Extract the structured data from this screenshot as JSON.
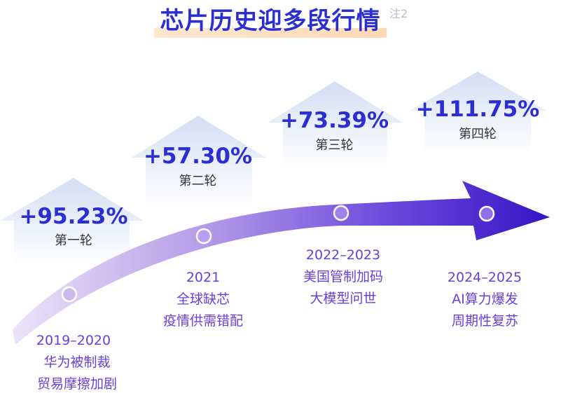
{
  "title": "芯片历史迎多段行情",
  "note": "注2",
  "colors": {
    "title": "#2b2fd1",
    "percent": "#2b2fd1",
    "label": "#6a3fd8",
    "arrow_start": "#e6dcf7",
    "arrow_end": "#3a19c9",
    "house": "#dde7f6"
  },
  "rounds": [
    {
      "percent": "+95.23%",
      "round": "第一轮",
      "period": "2019–2020",
      "lines": [
        "华为被制裁",
        "贸易摩擦加剧"
      ]
    },
    {
      "percent": "+57.30%",
      "round": "第二轮",
      "period": "2021",
      "lines": [
        "全球缺芯",
        "疫情供需错配"
      ]
    },
    {
      "percent": "+73.39%",
      "round": "第三轮",
      "period": "2022–2023",
      "lines": [
        "美国管制加码",
        "大模型问世"
      ]
    },
    {
      "percent": "+111.75%",
      "round": "第四轮",
      "period": "2024–2025",
      "lines": [
        "AI算力爆发",
        "周期性复苏"
      ]
    }
  ]
}
